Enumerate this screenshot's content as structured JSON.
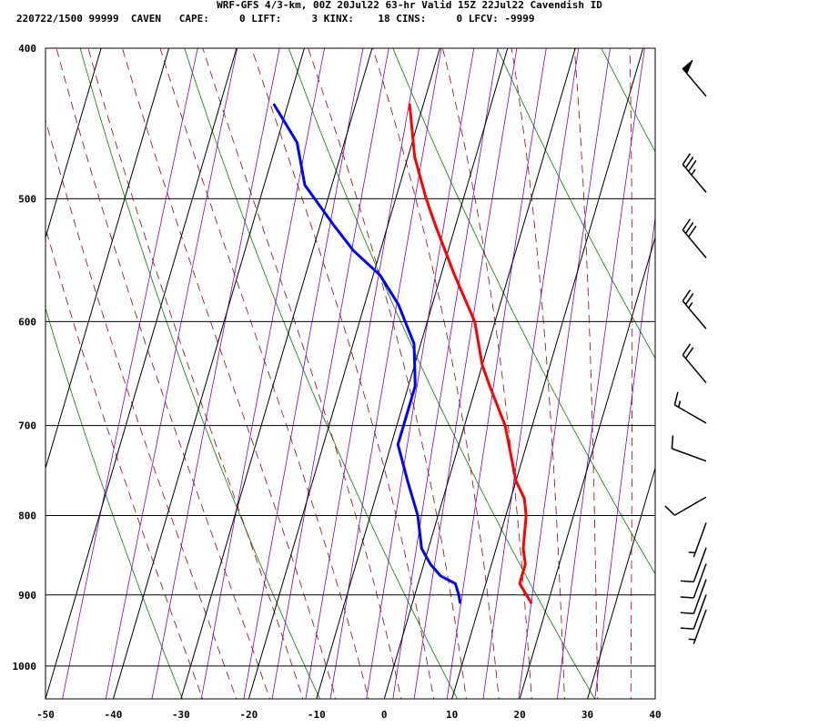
{
  "title": "WRF-GFS 4/3-km, 00Z 20Jul22 63-hr Valid 15Z 22Jul22 Cavendish ID",
  "subtitle": "220722/1500 99999  CAVEN   CAPE:     0 LIFT:     3 KINX:    18 CINS:     0 LFCV: -9999",
  "colors": {
    "temperature": "#ff0000",
    "dewpoint": "#0000ff",
    "isotherm": "#000000",
    "isobar": "#000000",
    "dry_adiabat": "#008000",
    "moist_adiabat": "#a00000",
    "mixing_ratio": "#8000c0",
    "wind_barb": "#000000"
  },
  "chart_data": {
    "type": "line",
    "diagram": "skew-T log-P",
    "x_axis": {
      "unit": "degC",
      "range": [
        -50,
        40
      ],
      "ticks": [
        "-50",
        "-40",
        "-30",
        "-20",
        "-10",
        "0",
        "10",
        "20",
        "30",
        "40"
      ]
    },
    "y_axis": {
      "unit": "hPa",
      "scale": "log",
      "range": [
        1050,
        400
      ],
      "ticks": [
        "400",
        "500",
        "600",
        "700",
        "800",
        "900",
        "1000"
      ]
    },
    "grid": true,
    "series": [
      {
        "key": "temperature",
        "points": [
          [
            910,
            17.5
          ],
          [
            900,
            16.5
          ],
          [
            885,
            15
          ],
          [
            860,
            15
          ],
          [
            840,
            14
          ],
          [
            800,
            13
          ],
          [
            780,
            12
          ],
          [
            760,
            10
          ],
          [
            700,
            6
          ],
          [
            660,
            2
          ],
          [
            640,
            0
          ],
          [
            600,
            -3
          ],
          [
            560,
            -8
          ],
          [
            520,
            -13
          ],
          [
            500,
            -15.5
          ],
          [
            470,
            -19
          ],
          [
            435,
            -22
          ]
        ]
      },
      {
        "key": "dewpoint",
        "points": [
          [
            910,
            7
          ],
          [
            900,
            6.5
          ],
          [
            885,
            5.5
          ],
          [
            875,
            3
          ],
          [
            860,
            1
          ],
          [
            840,
            -1
          ],
          [
            800,
            -3
          ],
          [
            760,
            -6
          ],
          [
            720,
            -9
          ],
          [
            700,
            -9
          ],
          [
            660,
            -9
          ],
          [
            620,
            -11
          ],
          [
            585,
            -15
          ],
          [
            560,
            -19
          ],
          [
            540,
            -24
          ],
          [
            520,
            -28
          ],
          [
            490,
            -34
          ],
          [
            460,
            -37
          ],
          [
            435,
            -42
          ]
        ]
      }
    ],
    "wind_barbs": [
      {
        "pressure": 425,
        "direction_deg": 320,
        "speed_kt": 50
      },
      {
        "pressure": 490,
        "direction_deg": 320,
        "speed_kt": 35
      },
      {
        "pressure": 540,
        "direction_deg": 320,
        "speed_kt": 30
      },
      {
        "pressure": 600,
        "direction_deg": 320,
        "speed_kt": 25
      },
      {
        "pressure": 650,
        "direction_deg": 320,
        "speed_kt": 20
      },
      {
        "pressure": 690,
        "direction_deg": 300,
        "speed_kt": 15
      },
      {
        "pressure": 730,
        "direction_deg": 290,
        "speed_kt": 10
      },
      {
        "pressure": 770,
        "direction_deg": 240,
        "speed_kt": 10
      },
      {
        "pressure": 800,
        "direction_deg": 200,
        "speed_kt": 5
      },
      {
        "pressure": 830,
        "direction_deg": 200,
        "speed_kt": 10
      },
      {
        "pressure": 850,
        "direction_deg": 200,
        "speed_kt": 10
      },
      {
        "pressure": 870,
        "direction_deg": 200,
        "speed_kt": 10
      },
      {
        "pressure": 890,
        "direction_deg": 200,
        "speed_kt": 10
      },
      {
        "pressure": 910,
        "direction_deg": 200,
        "speed_kt": 5
      }
    ]
  }
}
